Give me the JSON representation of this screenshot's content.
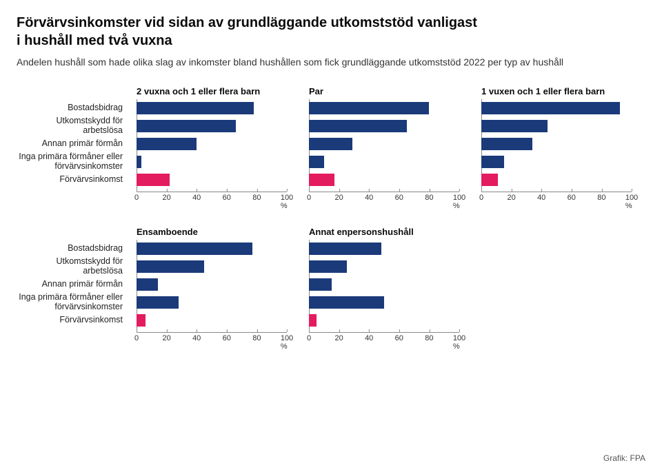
{
  "title_line1": "Förvärvsinkomster vid sidan av grundläggande utkomststöd vanligast",
  "title_line2": "i hushåll med två vuxna",
  "subtitle": "Andelen hushåll som hade olika slag av inkomster bland hushållen som fick grundläggande utkomststöd 2022 per typ av hushåll",
  "credit": "Grafik: FPA",
  "categories": [
    "Bostadsbidrag",
    "Utkomstskydd för arbetslösa",
    "Annan primär förmån",
    "Inga primära förmåner eller förvärvsinkomster",
    "Förvärvsinkomst"
  ],
  "bar_color_default": "#1b3a7a",
  "bar_color_highlight": "#e31b5f",
  "highlight_index": 4,
  "xlim": [
    0,
    100
  ],
  "xticks": [
    0,
    20,
    40,
    60,
    80,
    100
  ],
  "xtick_suffix": " %",
  "axis_color": "#888888",
  "panels": [
    {
      "title": "2 vuxna och 1 eller flera barn",
      "values": [
        78,
        66,
        40,
        3,
        22
      ]
    },
    {
      "title": "Par",
      "values": [
        80,
        65,
        29,
        10,
        17
      ]
    },
    {
      "title": "1 vuxen och 1 eller flera barn",
      "values": [
        92,
        44,
        34,
        15,
        11
      ]
    },
    {
      "title": "Ensamboende",
      "values": [
        77,
        45,
        14,
        28,
        6
      ]
    },
    {
      "title": "Annat enpersonshushåll",
      "values": [
        48,
        25,
        15,
        50,
        5
      ]
    }
  ]
}
